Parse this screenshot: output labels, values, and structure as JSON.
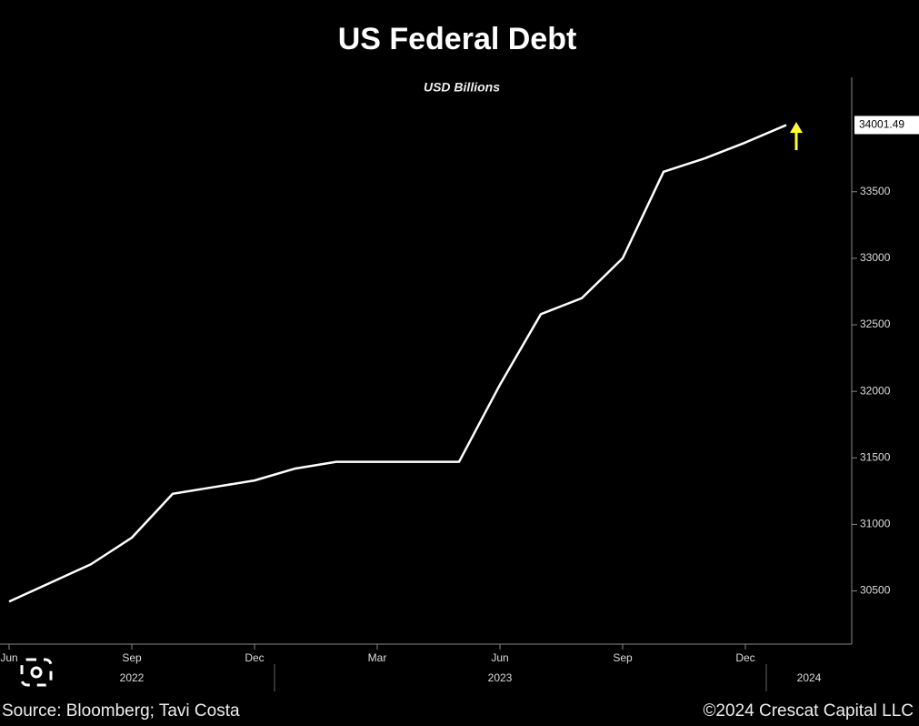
{
  "chart_data": {
    "type": "line",
    "title": "US Federal Debt",
    "subtitle": "USD Billions",
    "x": [
      "2022-06",
      "2022-07",
      "2022-08",
      "2022-09",
      "2022-10",
      "2022-11",
      "2022-12",
      "2023-01",
      "2023-02",
      "2023-03",
      "2023-04",
      "2023-05",
      "2023-06",
      "2023-07",
      "2023-08",
      "2023-09",
      "2023-10",
      "2023-11",
      "2023-12",
      "2024-01"
    ],
    "values": [
      30420,
      30560,
      30700,
      30900,
      31230,
      31280,
      31330,
      31420,
      31470,
      31470,
      31470,
      31470,
      32050,
      32580,
      32700,
      33000,
      33650,
      33750,
      33870,
      34001.49
    ],
    "color": "#ffffff",
    "ylim": [
      30100,
      34360
    ],
    "yticks": [
      30500,
      31000,
      31500,
      32000,
      32500,
      33000,
      33500
    ],
    "xticks": [
      {
        "value": "2022-06",
        "label": "Jun"
      },
      {
        "value": "2022-09",
        "label": "Sep"
      },
      {
        "value": "2022-12",
        "label": "Dec"
      },
      {
        "value": "2023-03",
        "label": "Mar"
      },
      {
        "value": "2023-06",
        "label": "Jun"
      },
      {
        "value": "2023-09",
        "label": "Sep"
      },
      {
        "value": "2023-12",
        "label": "Dec"
      }
    ],
    "year_labels": [
      {
        "value": "2022-09",
        "label": "2022"
      },
      {
        "value": "2023-06",
        "label": "2023"
      },
      {
        "value": "2024-01",
        "label": "2024"
      }
    ],
    "source": "Source: Bloomberg; Tavi Costa",
    "copyright": "©2024 Crescat Capital LLC"
  }
}
